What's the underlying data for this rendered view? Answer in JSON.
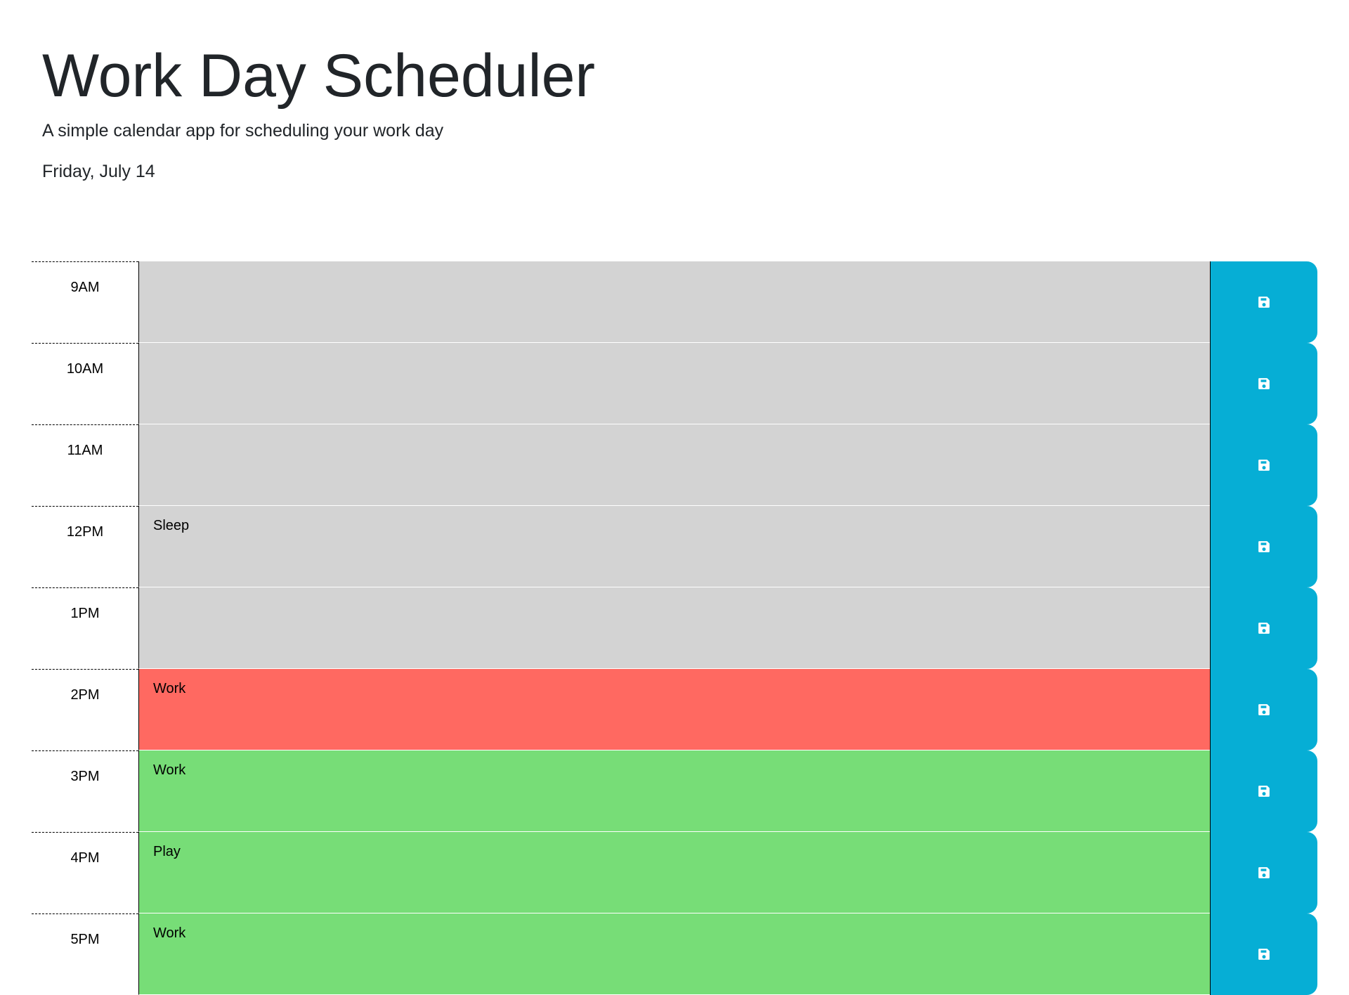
{
  "header": {
    "title": "Work Day Scheduler",
    "subtitle": "A simple calendar app for scheduling your work day",
    "current_day": "Friday, July 14"
  },
  "colors": {
    "past": "#d3d3d3",
    "present": "#ff6961",
    "future": "#77dd77",
    "save_button": "#06aed5"
  },
  "time_blocks": [
    {
      "hour": "9AM",
      "text": "",
      "state": "past"
    },
    {
      "hour": "10AM",
      "text": "",
      "state": "past"
    },
    {
      "hour": "11AM",
      "text": "",
      "state": "past"
    },
    {
      "hour": "12PM",
      "text": "Sleep",
      "state": "past"
    },
    {
      "hour": "1PM",
      "text": "",
      "state": "past"
    },
    {
      "hour": "2PM",
      "text": "Work",
      "state": "present"
    },
    {
      "hour": "3PM",
      "text": "Work",
      "state": "future"
    },
    {
      "hour": "4PM",
      "text": "Play",
      "state": "future"
    },
    {
      "hour": "5PM",
      "text": "Work",
      "state": "future"
    }
  ],
  "icons": {
    "save": "floppy-disk-icon"
  }
}
